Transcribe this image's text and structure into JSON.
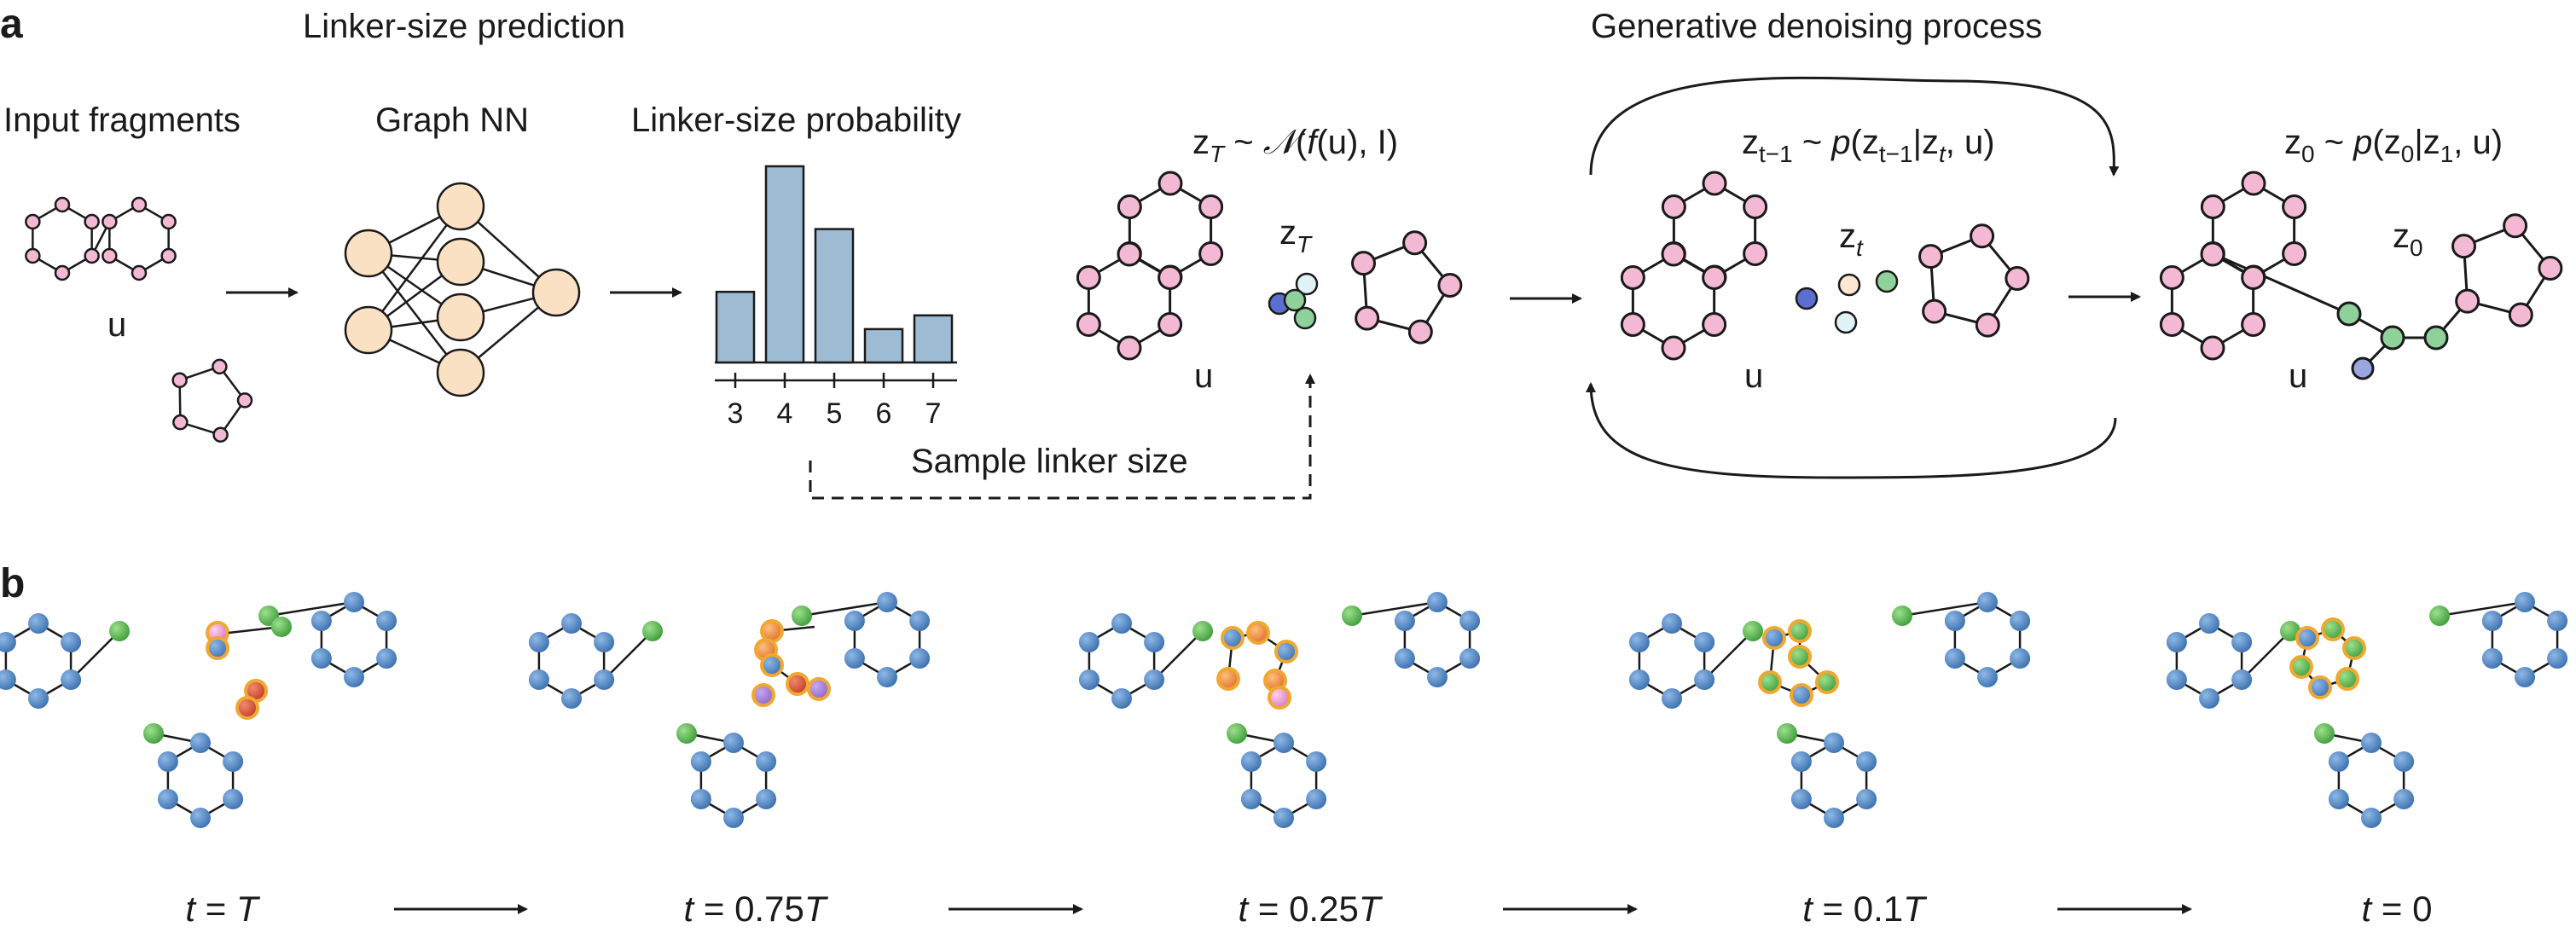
{
  "panel_a": {
    "letter": "a",
    "section_linker": "Linker-size prediction",
    "section_denoise": "Generative denoising process",
    "input_fragments": "Input fragments",
    "graph_nn": "Graph NN",
    "linker_prob": "Linker-size probability",
    "u_label": "u",
    "sample_linker": "Sample linker size",
    "zT_label": "zT",
    "zt_label": "zt",
    "z0_label": "z0",
    "eq_zT": "zT ~ 𝒩(f(u), I)",
    "eq_zt": "zt−1 ~ p(zt−1|zt, u)",
    "eq_z0": "z0 ~ p(z0|z1, u)"
  },
  "chart_data": {
    "type": "bar",
    "categories": [
      "3",
      "4",
      "5",
      "6",
      "7"
    ],
    "values": [
      0.36,
      1.0,
      0.68,
      0.17,
      0.24
    ],
    "color": "#9dbbd2"
  },
  "panel_b": {
    "letter": "b",
    "steps": [
      {
        "t": "t",
        "v": "T"
      },
      {
        "t": "t",
        "v": "0.75T"
      },
      {
        "t": "t",
        "v": "0.25T"
      },
      {
        "t": "t",
        "v": "0.1T"
      },
      {
        "t": "t",
        "v": "0"
      }
    ]
  },
  "colors": {
    "pink_atom": "#f2b8d4",
    "peach_node": "#fbe1c3",
    "bar": "#9dbbd2",
    "blue_atom": "#4b86c4",
    "green_atom": "#5fbf5a",
    "orange_atom": "#f08a3c",
    "purple_atom": "#5b6fd0",
    "mint_atom": "#8fd19b",
    "light_cyan": "#dff3f6"
  }
}
